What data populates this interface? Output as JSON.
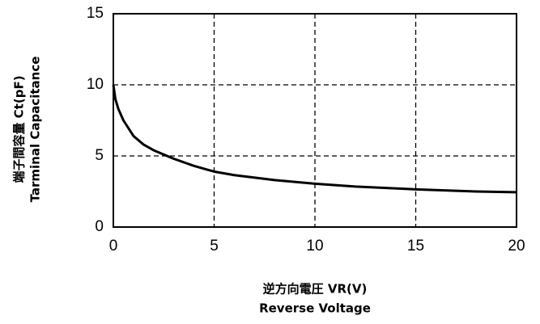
{
  "chart_data": {
    "type": "line",
    "x_label": "逆方向電圧 VR(V)",
    "x_label_sub": "Reverse Voltage",
    "y_label": "端子間容量 Ct(pF)",
    "y_label_sub": "Tarminal Capacitance",
    "x": [
      0,
      0.1,
      0.25,
      0.5,
      1,
      1.5,
      2,
      3,
      4,
      5,
      6,
      8,
      10,
      12,
      15,
      18,
      20
    ],
    "series": [
      {
        "color": "#000000",
        "values": [
          10,
          9.0,
          8.3,
          7.5,
          6.4,
          5.8,
          5.4,
          4.8,
          4.3,
          3.9,
          3.65,
          3.3,
          3.05,
          2.85,
          2.65,
          2.5,
          2.45
        ]
      }
    ],
    "xlim": [
      0,
      20
    ],
    "xticks": [
      0,
      5,
      10,
      15,
      20
    ],
    "ylim": [
      0,
      15
    ],
    "yticks": [
      0,
      5,
      10,
      15
    ],
    "grid": true
  }
}
